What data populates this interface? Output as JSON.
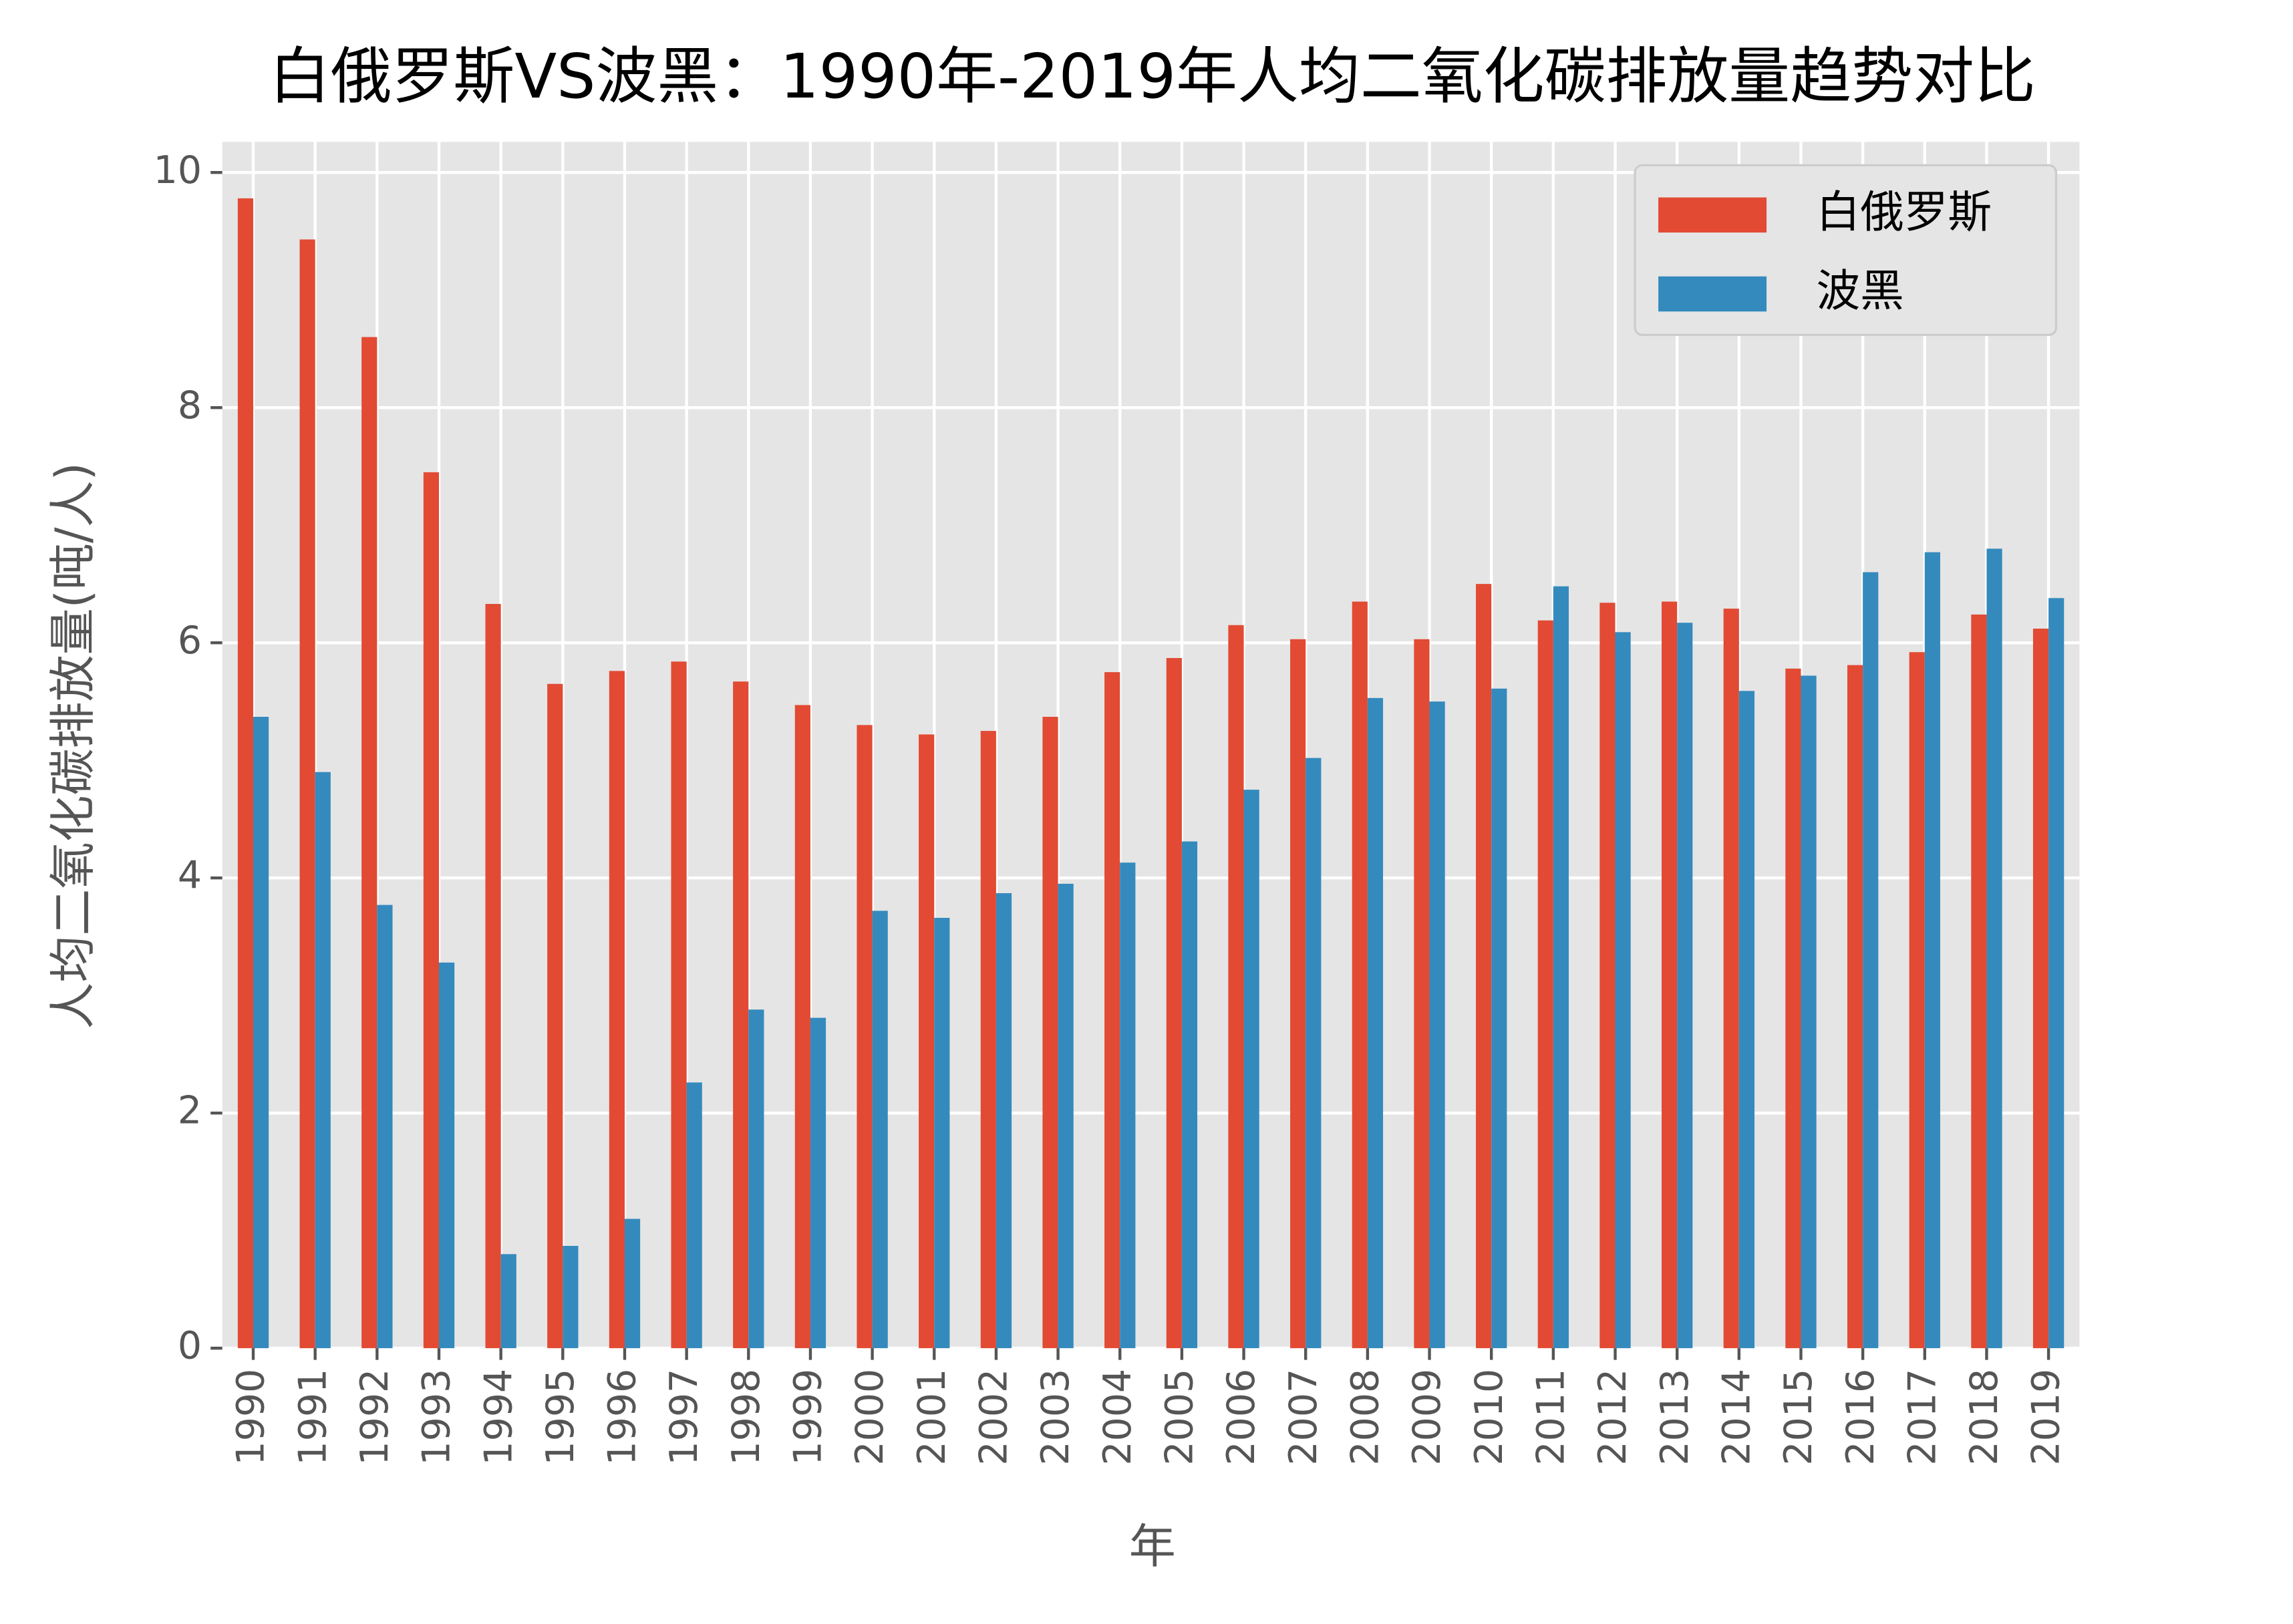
{
  "chart_data": {
    "type": "bar",
    "title": "白俄罗斯VS波黑：1990年-2019年人均二氧化碳排放量趋势对比",
    "xlabel": "年",
    "ylabel": "人均二氧化碳排放量(吨/人)",
    "categories": [
      "1990",
      "1991",
      "1992",
      "1993",
      "1994",
      "1995",
      "1996",
      "1997",
      "1998",
      "1999",
      "2000",
      "2001",
      "2002",
      "2003",
      "2004",
      "2005",
      "2006",
      "2007",
      "2008",
      "2009",
      "2010",
      "2011",
      "2012",
      "2013",
      "2014",
      "2015",
      "2016",
      "2017",
      "2018",
      "2019"
    ],
    "series": [
      {
        "name": "白俄罗斯",
        "color": "#e24a33",
        "values": [
          9.78,
          9.43,
          8.6,
          7.45,
          6.33,
          5.65,
          5.76,
          5.84,
          5.67,
          5.47,
          5.3,
          5.22,
          5.25,
          5.37,
          5.75,
          5.87,
          6.15,
          6.03,
          6.35,
          6.03,
          6.5,
          6.19,
          6.34,
          6.35,
          6.29,
          5.78,
          5.81,
          5.92,
          6.24,
          6.12
        ]
      },
      {
        "name": "波黑",
        "color": "#348abd",
        "values": [
          5.37,
          4.9,
          3.77,
          3.28,
          0.8,
          0.87,
          1.1,
          2.26,
          2.88,
          2.81,
          3.72,
          3.66,
          3.87,
          3.95,
          4.13,
          4.31,
          4.75,
          5.02,
          5.53,
          5.5,
          5.61,
          6.48,
          6.09,
          6.17,
          5.59,
          5.72,
          6.6,
          6.77,
          6.8,
          6.38
        ]
      }
    ],
    "ylim": [
      0,
      10.26
    ],
    "yticks": [
      0,
      2,
      4,
      6,
      8,
      10
    ],
    "grid": true,
    "legend": "upper right"
  }
}
